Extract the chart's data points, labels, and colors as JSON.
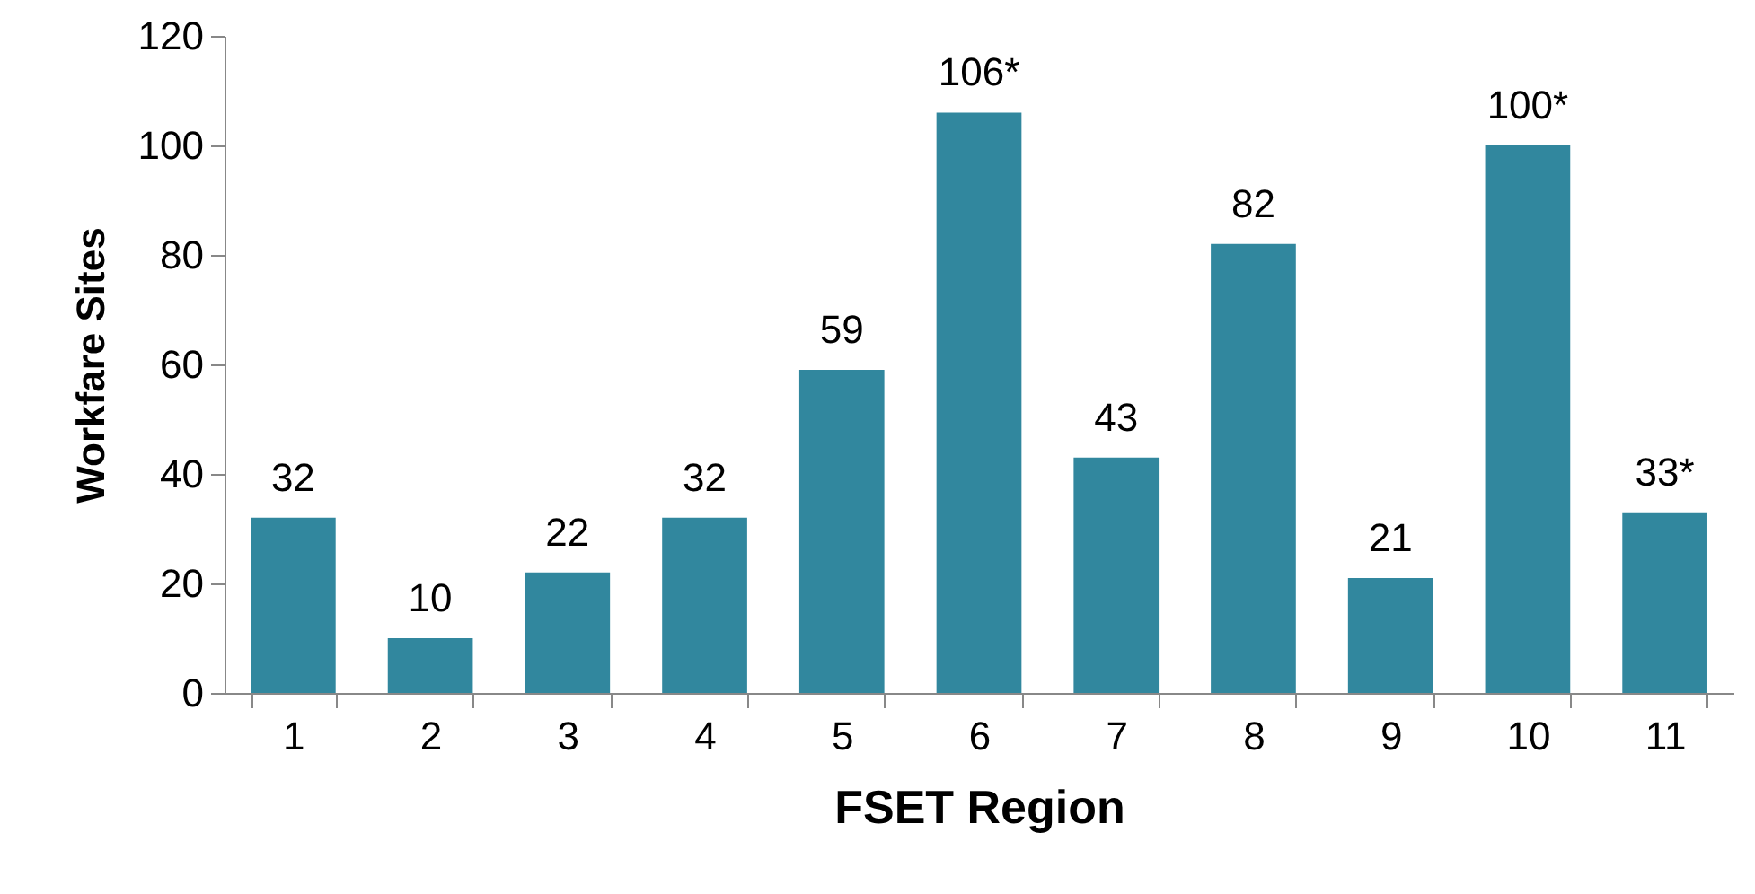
{
  "chart_data": {
    "type": "bar",
    "xlabel": "FSET Region",
    "ylabel": "Workfare Sites",
    "categories": [
      "1",
      "2",
      "3",
      "4",
      "5",
      "6",
      "7",
      "8",
      "9",
      "10",
      "11"
    ],
    "values": [
      32,
      10,
      22,
      32,
      59,
      106,
      43,
      82,
      21,
      100,
      33
    ],
    "value_labels": [
      "32",
      "10",
      "22",
      "32",
      "59",
      "106*",
      "43",
      "82",
      "21",
      "100*",
      "33*"
    ],
    "color": "#31879e",
    "ylim": [
      0,
      120
    ],
    "yticks": [
      0,
      20,
      40,
      60,
      80,
      100,
      120
    ],
    "grid": false
  }
}
